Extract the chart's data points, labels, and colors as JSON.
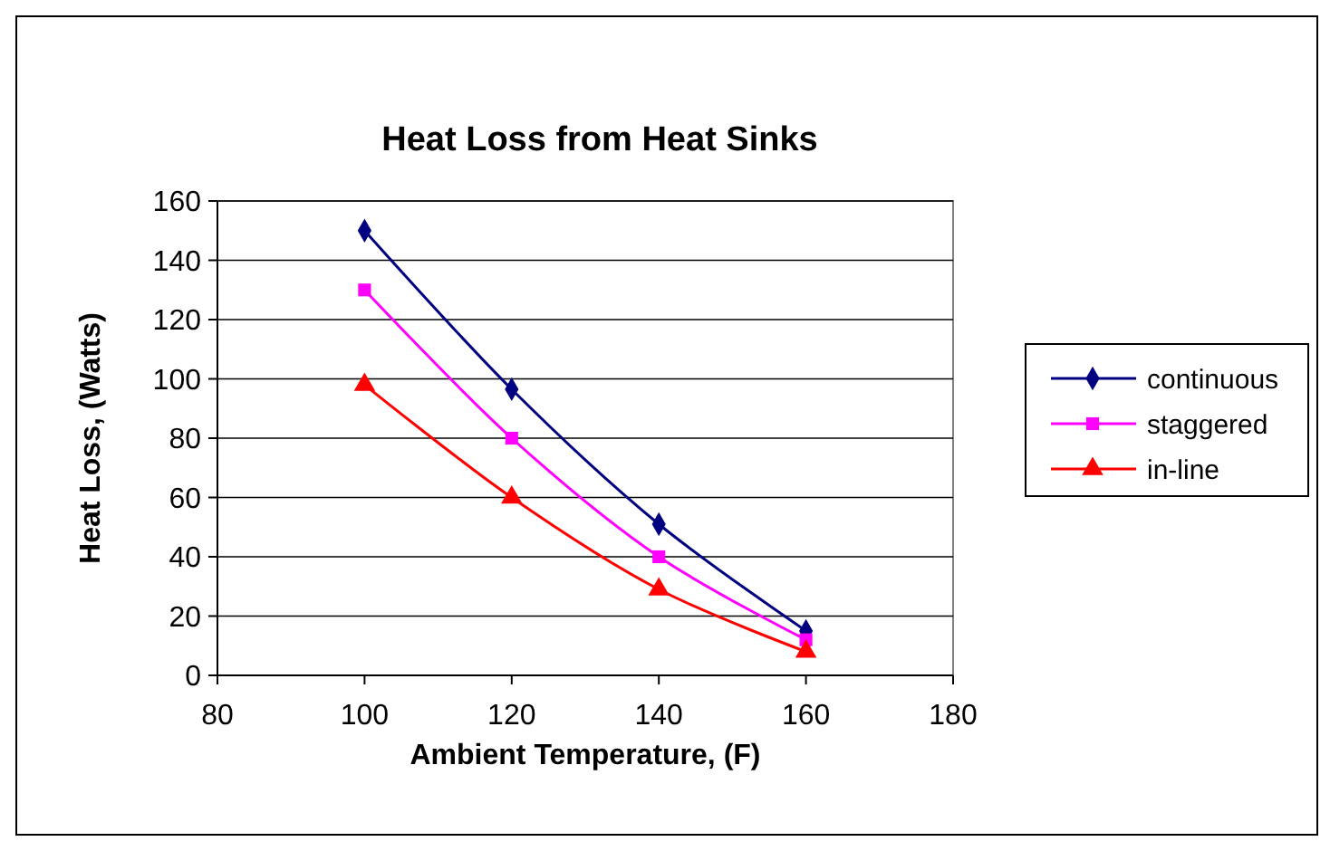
{
  "chart_data": {
    "type": "line",
    "title": "Heat Loss from Heat Sinks",
    "xlabel": "Ambient Temperature, (F)",
    "ylabel": "Heat Loss, (Watts)",
    "x": [
      100,
      120,
      140,
      160
    ],
    "xlim": [
      80,
      180
    ],
    "xticks": [
      80,
      100,
      120,
      140,
      160,
      180
    ],
    "ylim": [
      0,
      160
    ],
    "yticks": [
      0,
      20,
      40,
      60,
      80,
      100,
      120,
      140,
      160
    ],
    "grid": "y",
    "legend": "right",
    "series": [
      {
        "name": "continuous",
        "color": "#000080",
        "marker": "diamond",
        "values": [
          150,
          96.5,
          51,
          15
        ]
      },
      {
        "name": "staggered",
        "color": "#ff00ff",
        "marker": "square",
        "values": [
          130,
          80,
          40,
          12
        ]
      },
      {
        "name": "in-line",
        "color": "#ff0000",
        "marker": "triangle",
        "values": [
          98,
          60,
          29,
          8
        ]
      }
    ]
  }
}
